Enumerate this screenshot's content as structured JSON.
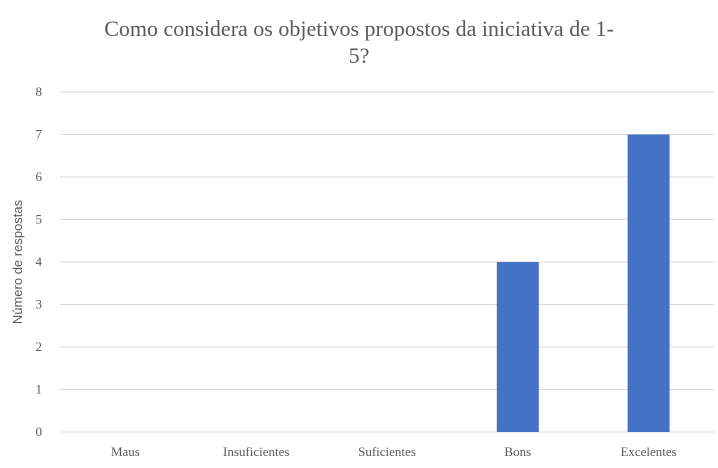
{
  "chart_data": {
    "type": "bar",
    "title": [
      "Como considera os objetivos propostos da iniciativa de 1-",
      "5?"
    ],
    "xlabel": "",
    "ylabel": "Número de respostas",
    "categories": [
      "Maus",
      "Insuficientes",
      "Suficientes",
      "Bons",
      "Excelentes"
    ],
    "values": [
      0,
      0,
      0,
      4,
      7
    ],
    "ylim": [
      0,
      8
    ],
    "yticks": [
      "0",
      "1",
      "2",
      "3",
      "4",
      "5",
      "6",
      "7",
      "8"
    ],
    "grid": true,
    "legend": "none",
    "colors": {
      "bar": "#4472C4",
      "grid": "#D9D9D9",
      "text": "#595959"
    }
  }
}
